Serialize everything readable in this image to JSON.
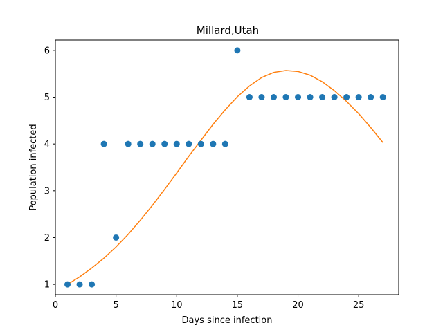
{
  "chart_data": {
    "type": "scatter",
    "title": "Millard,Utah",
    "xlabel": "Days since infection",
    "ylabel": "Population infected",
    "xlim": [
      0,
      28.3
    ],
    "ylim": [
      0.78,
      6.22
    ],
    "xticks": [
      0,
      5,
      10,
      15,
      20,
      25
    ],
    "yticks": [
      1,
      2,
      3,
      4,
      5,
      6
    ],
    "grid": false,
    "series": [
      {
        "kind": "scatter",
        "color": "#1f77b4",
        "x": [
          1,
          2,
          3,
          4,
          5,
          6,
          7,
          8,
          9,
          10,
          11,
          12,
          13,
          14,
          15,
          16,
          17,
          18,
          19,
          20,
          21,
          22,
          23,
          24,
          25,
          26,
          27
        ],
        "y": [
          1,
          1,
          1,
          4,
          2,
          4,
          4,
          4,
          4,
          4,
          4,
          4,
          4,
          4,
          6,
          5,
          5,
          5,
          5,
          5,
          5,
          5,
          5,
          5,
          5,
          5,
          5
        ]
      },
      {
        "kind": "line",
        "color": "#ff7f0e",
        "x": [
          1,
          2,
          3,
          4,
          5,
          6,
          7,
          8,
          9,
          10,
          11,
          12,
          13,
          14,
          15,
          16,
          17,
          18,
          19,
          20,
          21,
          22,
          23,
          24,
          25,
          26,
          27
        ],
        "y": [
          1.0,
          1.16,
          1.35,
          1.56,
          1.8,
          2.07,
          2.37,
          2.69,
          3.03,
          3.38,
          3.74,
          4.08,
          4.42,
          4.73,
          5.01,
          5.24,
          5.42,
          5.53,
          5.57,
          5.55,
          5.47,
          5.33,
          5.14,
          4.91,
          4.65,
          4.35,
          4.03
        ]
      }
    ]
  }
}
